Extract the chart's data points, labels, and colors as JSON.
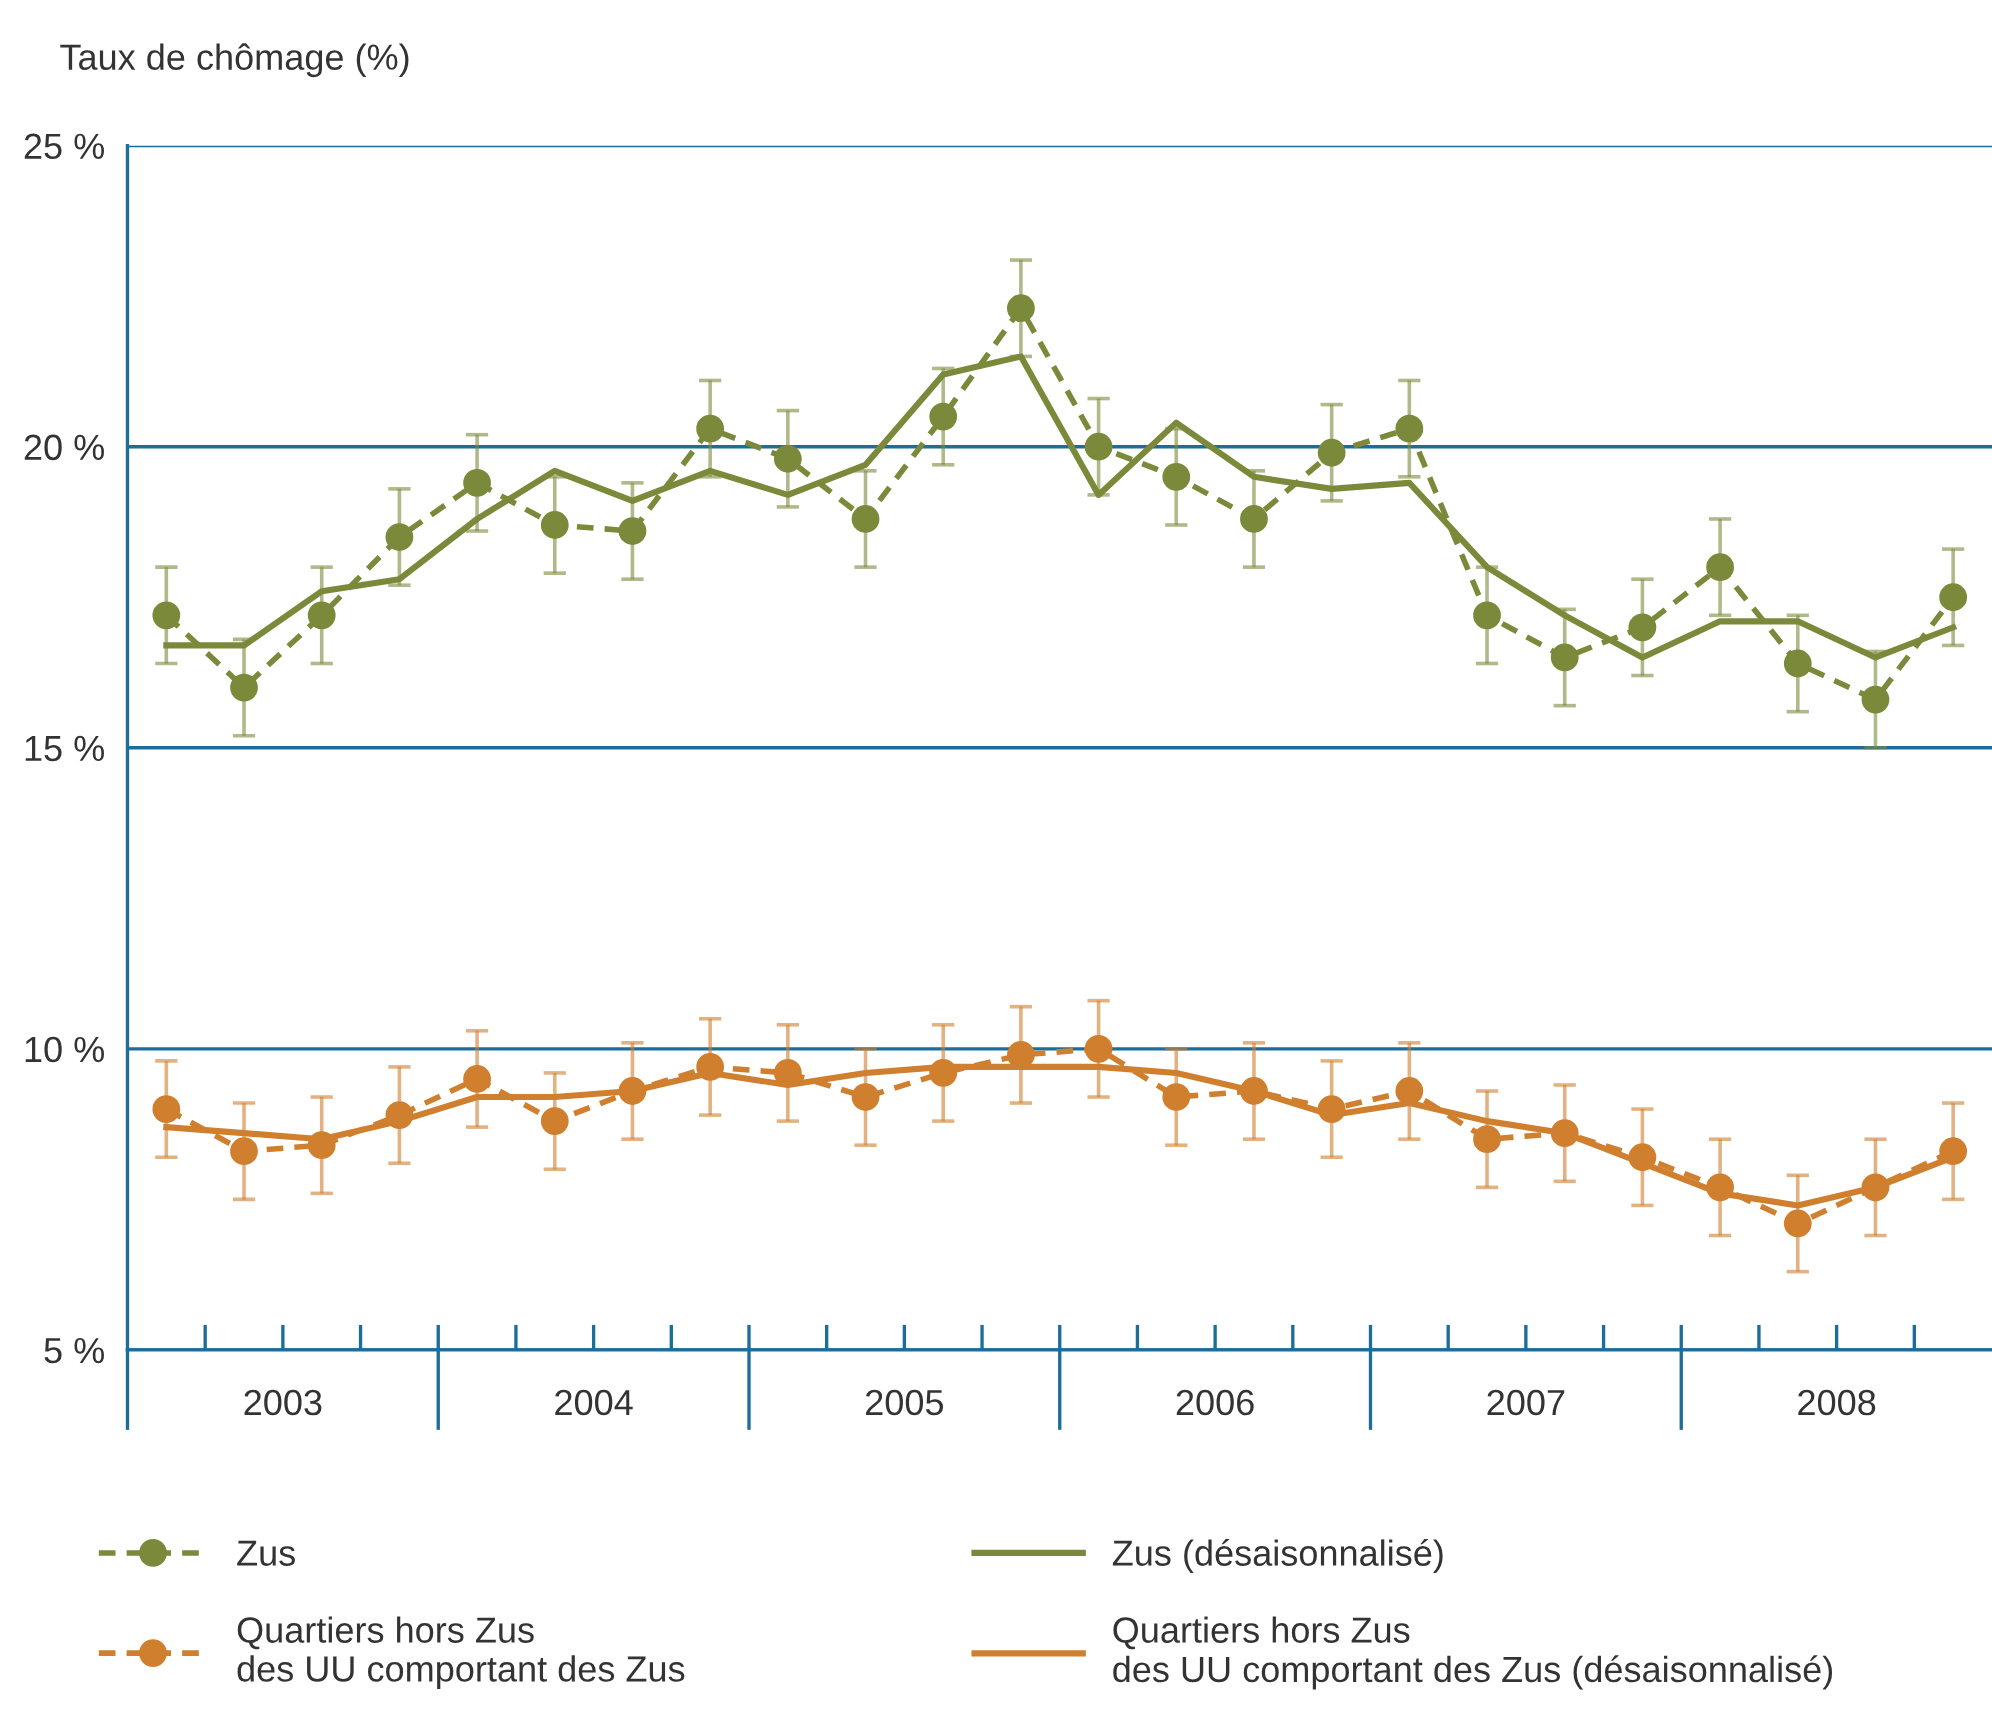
{
  "chart_data": {
    "type": "line",
    "ylabel": "Taux de chômage (%)",
    "x": [
      2003.125,
      2003.375,
      2003.625,
      2003.875,
      2004.125,
      2004.375,
      2004.625,
      2004.875,
      2005.125,
      2005.375,
      2005.625,
      2005.875,
      2006.125,
      2006.375,
      2006.625,
      2006.875,
      2007.125,
      2007.375,
      2007.625,
      2007.875,
      2008.125,
      2008.375,
      2008.625,
      2008.875
    ],
    "series": [
      {
        "name": "Zus",
        "color": "#7a8a3a",
        "line_style": "dashed",
        "marker": "circle",
        "values": [
          17.2,
          16.0,
          17.2,
          18.5,
          19.4,
          18.7,
          18.6,
          20.3,
          19.8,
          18.8,
          20.5,
          22.3,
          20.0,
          19.5,
          18.8,
          19.9,
          20.3,
          17.2,
          16.5,
          17.0,
          18.0,
          16.4,
          15.8,
          17.5
        ],
        "errors": [
          0.8,
          0.8,
          0.8,
          0.8,
          0.8,
          0.8,
          0.8,
          0.8,
          0.8,
          0.8,
          0.8,
          0.8,
          0.8,
          0.8,
          0.8,
          0.8,
          0.8,
          0.8,
          0.8,
          0.8,
          0.8,
          0.8,
          0.8,
          0.8
        ]
      },
      {
        "name": "Zus (désaisonnalisé)",
        "color": "#7a8a3a",
        "line_style": "solid",
        "marker": "none",
        "values": [
          16.7,
          16.7,
          17.6,
          17.8,
          18.8,
          19.6,
          19.1,
          19.6,
          19.2,
          19.7,
          21.2,
          21.5,
          19.2,
          20.4,
          19.5,
          19.3,
          19.4,
          18.0,
          17.2,
          16.5,
          17.1,
          17.1,
          16.5,
          17.0
        ]
      },
      {
        "name": "Quartiers hors Zus\ndes UU comportant des Zus",
        "color": "#d07f2e",
        "line_style": "dashed",
        "marker": "circle",
        "values": [
          9.0,
          8.3,
          8.4,
          8.9,
          9.5,
          8.8,
          9.3,
          9.7,
          9.6,
          9.2,
          9.6,
          9.9,
          10.0,
          9.2,
          9.3,
          9.0,
          9.3,
          8.5,
          8.6,
          8.2,
          7.7,
          7.1,
          7.7,
          8.3
        ],
        "errors": [
          0.8,
          0.8,
          0.8,
          0.8,
          0.8,
          0.8,
          0.8,
          0.8,
          0.8,
          0.8,
          0.8,
          0.8,
          0.8,
          0.8,
          0.8,
          0.8,
          0.8,
          0.8,
          0.8,
          0.8,
          0.8,
          0.8,
          0.8,
          0.8
        ]
      },
      {
        "name": "Quartiers hors Zus\ndes UU comportant des Zus (désaisonnalisé)",
        "color": "#d07f2e",
        "line_style": "solid",
        "marker": "none",
        "values": [
          8.7,
          8.6,
          8.5,
          8.8,
          9.2,
          9.2,
          9.3,
          9.6,
          9.4,
          9.6,
          9.7,
          9.7,
          9.7,
          9.6,
          9.3,
          8.9,
          9.1,
          8.8,
          8.6,
          8.1,
          7.6,
          7.4,
          7.7,
          8.2
        ]
      }
    ],
    "xlim": [
      2003,
      2009
    ],
    "xticks": [
      {
        "value": 2003.25,
        "label": null
      },
      {
        "value": 2003.5,
        "label": null
      },
      {
        "value": 2003.75,
        "label": null
      },
      {
        "value": 2004,
        "label": null
      },
      {
        "value": 2004.25,
        "label": null
      },
      {
        "value": 2004.5,
        "label": null
      },
      {
        "value": 2004.75,
        "label": null
      },
      {
        "value": 2005,
        "label": null
      },
      {
        "value": 2005.25,
        "label": null
      },
      {
        "value": 2005.5,
        "label": null
      },
      {
        "value": 2005.75,
        "label": null
      },
      {
        "value": 2006,
        "label": null
      },
      {
        "value": 2006.25,
        "label": null
      },
      {
        "value": 2006.5,
        "label": null
      },
      {
        "value": 2006.75,
        "label": null
      },
      {
        "value": 2007,
        "label": null
      },
      {
        "value": 2007.25,
        "label": null
      },
      {
        "value": 2007.5,
        "label": null
      },
      {
        "value": 2007.75,
        "label": null
      },
      {
        "value": 2008,
        "label": null
      },
      {
        "value": 2008.25,
        "label": null
      },
      {
        "value": 2008.5,
        "label": null
      },
      {
        "value": 2008.75,
        "label": null
      },
      {
        "value": 2003.5,
        "label": "2003"
      },
      {
        "value": 2004.5,
        "label": "2004"
      },
      {
        "value": 2005.5,
        "label": "2005"
      },
      {
        "value": 2006.5,
        "label": "2006"
      },
      {
        "value": 2007.5,
        "label": "2007"
      },
      {
        "value": 2008.5,
        "label": "2008"
      }
    ],
    "ylim": [
      5,
      25
    ],
    "yticks": [
      {
        "value": 5,
        "label": "5 %"
      },
      {
        "value": 10,
        "label": "10 %"
      },
      {
        "value": 15,
        "label": "15 %"
      },
      {
        "value": 20,
        "label": "20 %"
      },
      {
        "value": 25,
        "label": "25 %"
      }
    ],
    "grid": "y",
    "legend": "bottom"
  }
}
